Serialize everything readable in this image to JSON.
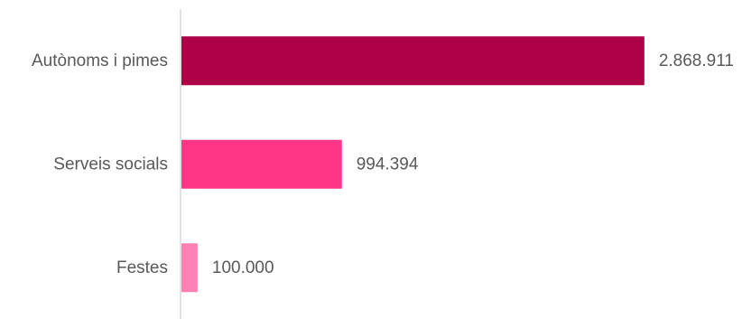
{
  "chart_data": {
    "type": "bar",
    "orientation": "horizontal",
    "title": "",
    "xlabel": "",
    "ylabel": "",
    "categories": [
      "Autònoms i pimes",
      "Serveis socials",
      "Festes"
    ],
    "values": [
      2868911,
      994394,
      100000
    ],
    "value_labels": [
      "2.868.911",
      "994.394",
      "100.000"
    ],
    "colors": [
      "#ad0045",
      "#ff3585",
      "#ff80b4"
    ],
    "xlim": [
      0,
      3200000
    ],
    "grid": false,
    "legend": "none"
  }
}
